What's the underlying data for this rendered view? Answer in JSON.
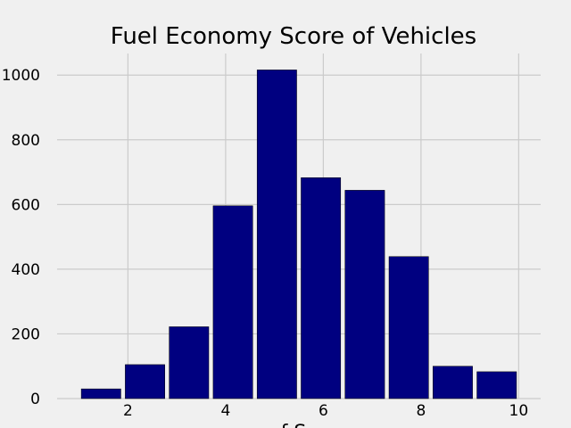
{
  "chart_data": {
    "type": "bar",
    "title": "Fuel Economy Score of Vehicles",
    "xlabel": "f  S",
    "ylabel": "",
    "bins": [
      {
        "x0": 1.0,
        "x1": 1.9,
        "value": 30
      },
      {
        "x0": 1.9,
        "x1": 2.8,
        "value": 105
      },
      {
        "x0": 2.8,
        "x1": 3.7,
        "value": 222
      },
      {
        "x0": 3.7,
        "x1": 4.6,
        "value": 596
      },
      {
        "x0": 4.6,
        "x1": 5.5,
        "value": 1016
      },
      {
        "x0": 5.5,
        "x1": 6.4,
        "value": 683
      },
      {
        "x0": 6.4,
        "x1": 7.3,
        "value": 644
      },
      {
        "x0": 7.3,
        "x1": 8.2,
        "value": 439
      },
      {
        "x0": 8.2,
        "x1": 9.1,
        "value": 100
      },
      {
        "x0": 9.1,
        "x1": 10.0,
        "value": 83
      }
    ],
    "bar_width_fraction": 0.9,
    "xlim": [
      0.55,
      10.45
    ],
    "ylim": [
      0,
      1066.8
    ],
    "xticks": [
      2,
      4,
      6,
      8,
      10
    ],
    "yticks": [
      0,
      200,
      400,
      600,
      800,
      1000
    ],
    "grid": true,
    "colors": {
      "bar": "#000080",
      "bar_edge": "#000000",
      "background": "#f0f0f0",
      "grid": "#cbcbcb",
      "text": "#000000"
    }
  }
}
